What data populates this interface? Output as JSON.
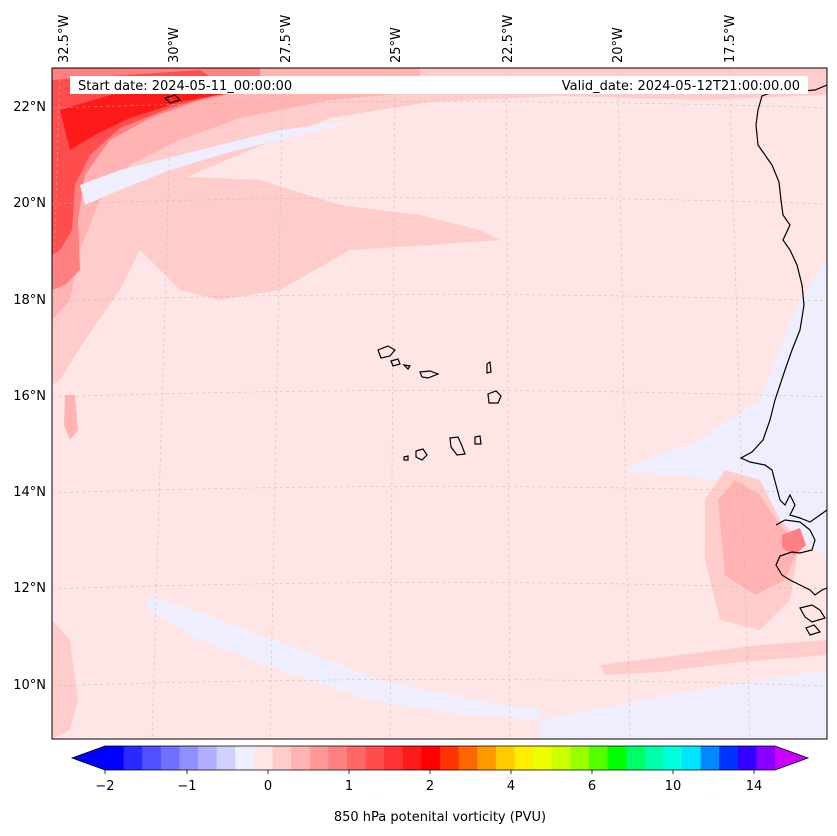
{
  "map": {
    "start_label": "Start date: 2024-05-11_00:00:00",
    "valid_label": "Valid_date: 2024-05-12T21:00:00.00",
    "lon_labels": [
      "32.5°W",
      "30°W",
      "27.5°W",
      "25°W",
      "22.5°W",
      "20°W",
      "17.5°W"
    ],
    "lat_labels": [
      "22°N",
      "20°N",
      "18°N",
      "16°N",
      "14°N",
      "12°N",
      "10°N"
    ],
    "colors": {
      "background": "#ffe6e6",
      "coast": "#000000",
      "grid": "#b8b8b8"
    }
  },
  "colorbar": {
    "title": "850 hPa potenital vorticity (PVU)",
    "tick_labels": [
      "−2",
      "−1",
      "0",
      "1",
      "2",
      "4",
      "6",
      "10",
      "14"
    ],
    "colors": [
      "#0000ff",
      "#2a2aff",
      "#5050ff",
      "#7070ff",
      "#9090ff",
      "#b0b0ff",
      "#d0d0ff",
      "#eeeeff",
      "#ffe6e6",
      "#ffcccc",
      "#ffb3b3",
      "#ff9999",
      "#ff8080",
      "#ff6666",
      "#ff4d4d",
      "#ff3333",
      "#ff1a1a",
      "#ff0000",
      "#ff3300",
      "#ff6600",
      "#ff9900",
      "#ffcc00",
      "#ffee00",
      "#eeff00",
      "#ccff00",
      "#99ff00",
      "#55ff00",
      "#00ff00",
      "#00ff66",
      "#00ffaa",
      "#00ffdd",
      "#00e5ff",
      "#0088ff",
      "#0033ff",
      "#3300ff",
      "#8800ff"
    ],
    "under_color": "#0000ff",
    "over_color": "#cc00ff"
  }
}
